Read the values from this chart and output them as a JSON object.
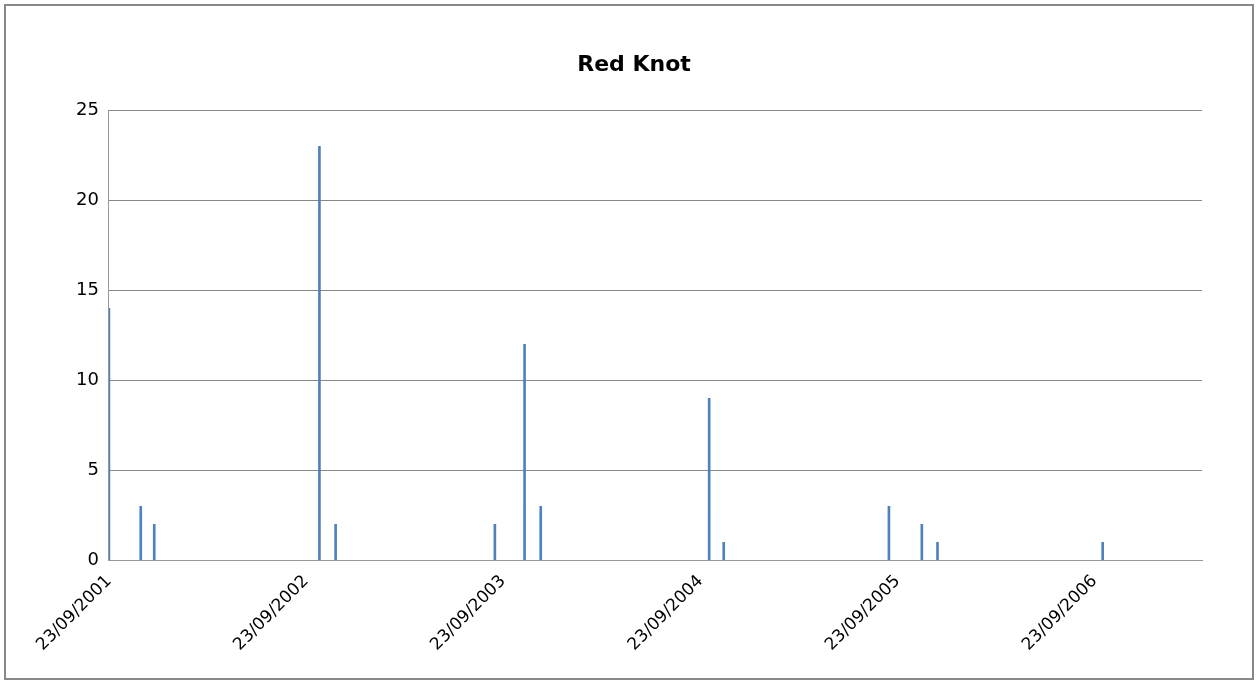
{
  "chart_data": {
    "type": "bar",
    "title": "Red Knot",
    "x": [
      "2001-09-23",
      "2001-11-21",
      "2001-12-16",
      "2002-10-18",
      "2002-11-17",
      "2003-09-08",
      "2003-11-02",
      "2003-12-02",
      "2004-10-09",
      "2004-11-05",
      "2005-09-07",
      "2005-11-07",
      "2005-12-06",
      "2006-10-08"
    ],
    "values": [
      14,
      3,
      2,
      23,
      2,
      2,
      12,
      3,
      9,
      1,
      3,
      2,
      1,
      1
    ],
    "color": "#4f81bd",
    "xlim": [
      "2001-09-23",
      "2007-04-10"
    ],
    "xticks": [
      {
        "value": "2001-09-23",
        "label": "23/09/2001"
      },
      {
        "value": "2002-09-23",
        "label": "23/09/2002"
      },
      {
        "value": "2003-09-23",
        "label": "23/09/2003"
      },
      {
        "value": "2004-09-23",
        "label": "23/09/2004"
      },
      {
        "value": "2005-09-23",
        "label": "23/09/2005"
      },
      {
        "value": "2006-09-23",
        "label": "23/09/2006"
      }
    ],
    "ylim": [
      0,
      25
    ],
    "yticks": [
      0,
      5,
      10,
      15,
      20,
      25
    ],
    "grid": "y",
    "legend": false
  }
}
